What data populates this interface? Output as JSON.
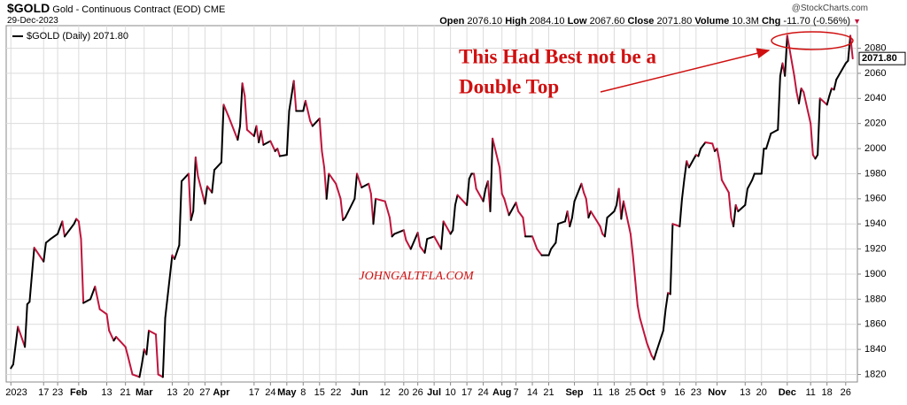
{
  "chart_data": {
    "type": "line",
    "symbol": "$GOLD",
    "title": "Gold - Continuous Contract (EOD)",
    "exchange": "CME",
    "date": "29-Dec-2023",
    "stats": [
      {
        "label": "Open",
        "value": "2076.10"
      },
      {
        "label": "High",
        "value": "2084.10"
      },
      {
        "label": "Low",
        "value": "2067.60"
      },
      {
        "label": "Close",
        "value": "2071.80"
      },
      {
        "label": "Volume",
        "value": "10.3M"
      },
      {
        "label": "Chg",
        "value": "-11.70 (-0.56%)"
      }
    ],
    "change_marker": "▼",
    "source": "@StockCharts.com",
    "annotation": [
      "This Had Best not be a",
      "Double Top"
    ],
    "watermark": "JOHNGALTFLA.COM",
    "last_label": "2071.80",
    "x": [
      "2023-01-03",
      "2023-01-04",
      "2023-01-06",
      "2023-01-09",
      "2023-01-10",
      "2023-01-11",
      "2023-01-13",
      "2023-01-17",
      "2023-01-18",
      "2023-01-20",
      "2023-01-23",
      "2023-01-25",
      "2023-01-26",
      "2023-01-30",
      "2023-01-31",
      "2023-02-01",
      "2023-02-02",
      "2023-02-03",
      "2023-02-06",
      "2023-02-08",
      "2023-02-10",
      "2023-02-13",
      "2023-02-14",
      "2023-02-16",
      "2023-02-17",
      "2023-02-21",
      "2023-02-22",
      "2023-02-24",
      "2023-02-27",
      "2023-02-28",
      "2023-03-01",
      "2023-03-02",
      "2023-03-03",
      "2023-03-06",
      "2023-03-07",
      "2023-03-09",
      "2023-03-10",
      "2023-03-13",
      "2023-03-14",
      "2023-03-16",
      "2023-03-17",
      "2023-03-20",
      "2023-03-21",
      "2023-03-22",
      "2023-03-23",
      "2023-03-24",
      "2023-03-27",
      "2023-03-28",
      "2023-03-30",
      "2023-03-31",
      "2023-04-03",
      "2023-04-04",
      "2023-04-06",
      "2023-04-10",
      "2023-04-11",
      "2023-04-12",
      "2023-04-13",
      "2023-04-14",
      "2023-04-17",
      "2023-04-18",
      "2023-04-19",
      "2023-04-20",
      "2023-04-21",
      "2023-04-24",
      "2023-04-26",
      "2023-04-27",
      "2023-04-28",
      "2023-05-01",
      "2023-05-02",
      "2023-05-04",
      "2023-05-05",
      "2023-05-08",
      "2023-05-09",
      "2023-05-11",
      "2023-05-12",
      "2023-05-15",
      "2023-05-16",
      "2023-05-17",
      "2023-05-18",
      "2023-05-19",
      "2023-05-22",
      "2023-05-24",
      "2023-05-25",
      "2023-05-26",
      "2023-05-30",
      "2023-05-31",
      "2023-06-02",
      "2023-06-05",
      "2023-06-06",
      "2023-06-07",
      "2023-06-08",
      "2023-06-12",
      "2023-06-14",
      "2023-06-15",
      "2023-06-16",
      "2023-06-20",
      "2023-06-21",
      "2023-06-23",
      "2023-06-26",
      "2023-06-27",
      "2023-06-29",
      "2023-06-30",
      "2023-07-03",
      "2023-07-06",
      "2023-07-07",
      "2023-07-10",
      "2023-07-11",
      "2023-07-12",
      "2023-07-13",
      "2023-07-17",
      "2023-07-18",
      "2023-07-19",
      "2023-07-20",
      "2023-07-21",
      "2023-07-24",
      "2023-07-25",
      "2023-07-26",
      "2023-07-27",
      "2023-07-28",
      "2023-07-31",
      "2023-08-01",
      "2023-08-02",
      "2023-08-04",
      "2023-08-07",
      "2023-08-08",
      "2023-08-10",
      "2023-08-11",
      "2023-08-14",
      "2023-08-16",
      "2023-08-18",
      "2023-08-21",
      "2023-08-22",
      "2023-08-24",
      "2023-08-25",
      "2023-08-28",
      "2023-08-29",
      "2023-08-30",
      "2023-08-31",
      "2023-09-01",
      "2023-09-04",
      "2023-09-05",
      "2023-09-06",
      "2023-09-07",
      "2023-09-08",
      "2023-09-11",
      "2023-09-12",
      "2023-09-13",
      "2023-09-14",
      "2023-09-15",
      "2023-09-18",
      "2023-09-19",
      "2023-09-20",
      "2023-09-21",
      "2023-09-22",
      "2023-09-25",
      "2023-09-26",
      "2023-09-27",
      "2023-09-28",
      "2023-09-29",
      "2023-10-02",
      "2023-10-03",
      "2023-10-04",
      "2023-10-05",
      "2023-10-06",
      "2023-10-09",
      "2023-10-10",
      "2023-10-11",
      "2023-10-12",
      "2023-10-13",
      "2023-10-16",
      "2023-10-17",
      "2023-10-18",
      "2023-10-19",
      "2023-10-20",
      "2023-10-23",
      "2023-10-24",
      "2023-10-25",
      "2023-10-27",
      "2023-10-30",
      "2023-10-31",
      "2023-11-01",
      "2023-11-02",
      "2023-11-03",
      "2023-11-06",
      "2023-11-07",
      "2023-11-08",
      "2023-11-09",
      "2023-11-10",
      "2023-11-13",
      "2023-11-14",
      "2023-11-16",
      "2023-11-17",
      "2023-11-20",
      "2023-11-21",
      "2023-11-22",
      "2023-11-24",
      "2023-11-27",
      "2023-11-28",
      "2023-11-29",
      "2023-11-30",
      "2023-12-01",
      "2023-12-04",
      "2023-12-05",
      "2023-12-06",
      "2023-12-07",
      "2023-12-08",
      "2023-12-11",
      "2023-12-12",
      "2023-12-13",
      "2023-12-14",
      "2023-12-15",
      "2023-12-18",
      "2023-12-19",
      "2023-12-20",
      "2023-12-21",
      "2023-12-22",
      "2023-12-26",
      "2023-12-27",
      "2023-12-28",
      "2023-12-29"
    ],
    "series": [
      {
        "name": "$GOLD (Daily) 2071.80",
        "color": "#000000",
        "down_color": "#c0143c",
        "values": [
          1825,
          1828,
          1858,
          1842,
          1876,
          1878,
          1921,
          1910,
          1925,
          1928,
          1932,
          1942,
          1930,
          1940,
          1944,
          1942,
          1928,
          1877,
          1880,
          1890,
          1872,
          1868,
          1855,
          1847,
          1850,
          1842,
          1835,
          1820,
          1818,
          1828,
          1840,
          1836,
          1855,
          1852,
          1820,
          1818,
          1865,
          1915,
          1912,
          1923,
          1974,
          1980,
          1943,
          1950,
          1993,
          1978,
          1956,
          1970,
          1965,
          1983,
          1989,
          2035,
          2026,
          2007,
          2018,
          2052,
          2042,
          2015,
          2010,
          2018,
          2005,
          2014,
          2003,
          2006,
          1998,
          2000,
          1994,
          1995,
          2030,
          2054,
          2030,
          2030,
          2038,
          2022,
          2018,
          2024,
          1998,
          1985,
          1960,
          1980,
          1972,
          1960,
          1943,
          1945,
          1960,
          1980,
          1969,
          1972,
          1964,
          1940,
          1960,
          1958,
          1945,
          1930,
          1932,
          1935,
          1927,
          1920,
          1933,
          1922,
          1917,
          1928,
          1930,
          1920,
          1942,
          1932,
          1935,
          1955,
          1963,
          1955,
          1976,
          1980,
          1980,
          1968,
          1958,
          1968,
          1974,
          1950,
          2008,
          1985,
          1964,
          1960,
          1947,
          1957,
          1950,
          1945,
          1930,
          1930,
          1920,
          1915,
          1915,
          1920,
          1925,
          1940,
          1942,
          1950,
          1938,
          1945,
          1958,
          1972,
          1965,
          1960,
          1945,
          1950,
          1941,
          1938,
          1932,
          1930,
          1945,
          1950,
          1955,
          1968,
          1944,
          1958,
          1932,
          1915,
          1895,
          1875,
          1865,
          1845,
          1840,
          1835,
          1832,
          1838,
          1855,
          1872,
          1885,
          1884,
          1940,
          1938,
          1960,
          1976,
          1990,
          1985,
          1995,
          1994,
          2000,
          2005,
          2004,
          1998,
          2000,
          1990,
          1975,
          1965,
          1945,
          1938,
          1955,
          1950,
          1955,
          1968,
          1975,
          1980,
          1980,
          2000,
          2000,
          2012,
          2015,
          2058,
          2068,
          2058,
          2090,
          2058,
          2045,
          2036,
          2048,
          2045,
          2020,
          1995,
          1992,
          1995,
          2040,
          2035,
          2042,
          2048,
          2047,
          2055,
          2068,
          2070,
          2090,
          2071.8
        ]
      }
    ],
    "xlim": [
      "2023-01-01",
      "2023-12-31"
    ],
    "xticks": [
      {
        "value": "2023-01-03",
        "label": "2023"
      },
      {
        "value": "2023-01-17",
        "label": "17"
      },
      {
        "value": "2023-01-23",
        "label": "23"
      },
      {
        "value": "2023-02-01",
        "label": "Feb"
      },
      {
        "value": "2023-02-13",
        "label": "13"
      },
      {
        "value": "2023-02-21",
        "label": "21"
      },
      {
        "value": "2023-03-01",
        "label": "Mar"
      },
      {
        "value": "2023-03-13",
        "label": "13"
      },
      {
        "value": "2023-03-20",
        "label": "20"
      },
      {
        "value": "2023-03-27",
        "label": "27"
      },
      {
        "value": "2023-04-03",
        "label": "Apr"
      },
      {
        "value": "2023-04-17",
        "label": "17"
      },
      {
        "value": "2023-04-24",
        "label": "24"
      },
      {
        "value": "2023-05-01",
        "label": "May"
      },
      {
        "value": "2023-05-08",
        "label": "8"
      },
      {
        "value": "2023-05-15",
        "label": "15"
      },
      {
        "value": "2023-05-22",
        "label": "22"
      },
      {
        "value": "2023-06-01",
        "label": "Jun"
      },
      {
        "value": "2023-06-12",
        "label": "12"
      },
      {
        "value": "2023-06-20",
        "label": "20"
      },
      {
        "value": "2023-06-26",
        "label": "26"
      },
      {
        "value": "2023-07-03",
        "label": "Jul"
      },
      {
        "value": "2023-07-10",
        "label": "10"
      },
      {
        "value": "2023-07-17",
        "label": "17"
      },
      {
        "value": "2023-07-24",
        "label": "24"
      },
      {
        "value": "2023-08-01",
        "label": "Aug"
      },
      {
        "value": "2023-08-07",
        "label": "7"
      },
      {
        "value": "2023-08-14",
        "label": "14"
      },
      {
        "value": "2023-08-21",
        "label": "21"
      },
      {
        "value": "2023-09-01",
        "label": "Sep"
      },
      {
        "value": "2023-09-11",
        "label": "11"
      },
      {
        "value": "2023-09-18",
        "label": "18"
      },
      {
        "value": "2023-09-25",
        "label": "25"
      },
      {
        "value": "2023-10-02",
        "label": "Oct"
      },
      {
        "value": "2023-10-09",
        "label": "9"
      },
      {
        "value": "2023-10-16",
        "label": "16"
      },
      {
        "value": "2023-10-23",
        "label": "23"
      },
      {
        "value": "2023-11-01",
        "label": "Nov"
      },
      {
        "value": "2023-11-13",
        "label": "13"
      },
      {
        "value": "2023-11-20",
        "label": "20"
      },
      {
        "value": "2023-12-01",
        "label": "Dec"
      },
      {
        "value": "2023-12-11",
        "label": "11"
      },
      {
        "value": "2023-12-18",
        "label": "18"
      },
      {
        "value": "2023-12-26",
        "label": "26"
      }
    ],
    "ylim": [
      1814,
      2098
    ],
    "yticks": [
      1820,
      1840,
      1860,
      1880,
      1900,
      1920,
      1940,
      1960,
      1980,
      2000,
      2020,
      2040,
      2060,
      2080
    ],
    "grid": true
  }
}
